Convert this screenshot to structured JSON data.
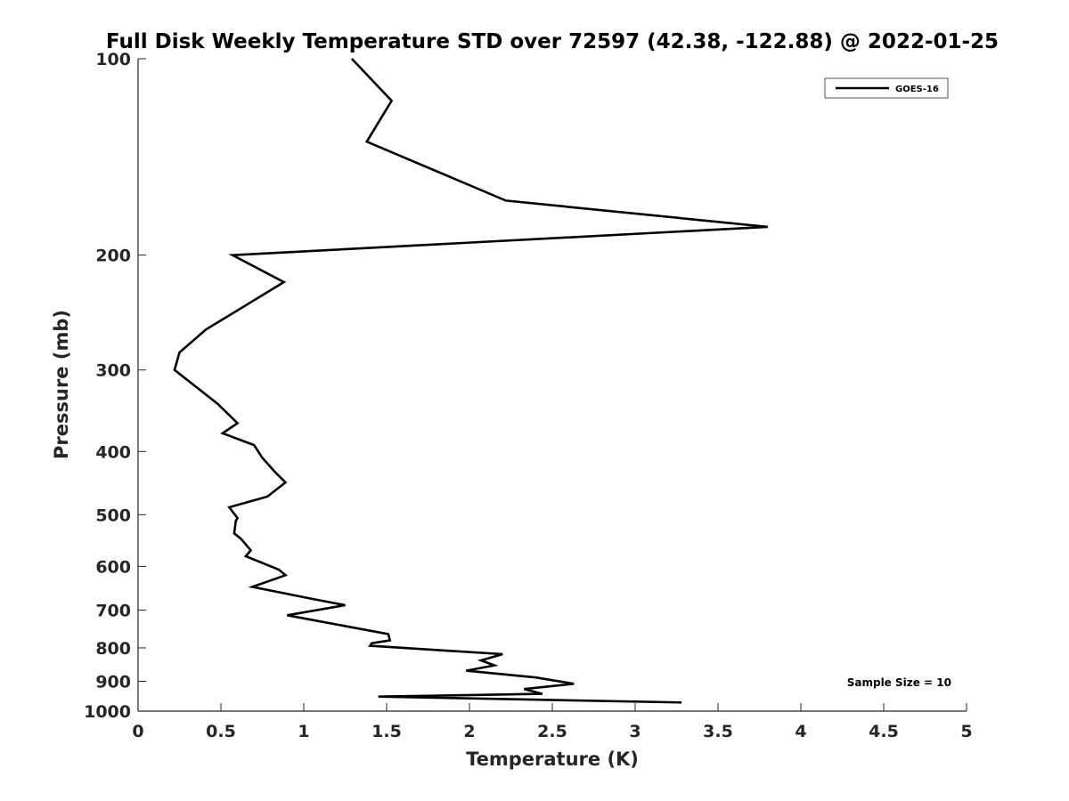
{
  "chart_data": {
    "type": "line",
    "title": "Full Disk Weekly Temperature STD over 72597 (42.38, -122.88) @ 2022-01-25",
    "xlabel": "Temperature (K)",
    "ylabel": "Pressure (mb)",
    "xlim": [
      0,
      5
    ],
    "ylim": [
      100,
      1000
    ],
    "y_scale": "log",
    "y_reversed": true,
    "x_ticks": [
      "0",
      "0.5",
      "1",
      "1.5",
      "2",
      "2.5",
      "3",
      "3.5",
      "4",
      "4.5",
      "5"
    ],
    "y_ticks": [
      "100",
      "200",
      "300",
      "400",
      "500",
      "600",
      "700",
      "800",
      "900",
      "1000"
    ],
    "grid": false,
    "legend_position": "top-right",
    "annotation": "Sample Size = 10",
    "line_color": "#000000",
    "series": [
      {
        "name": "GOES-16",
        "x": [
          1.29,
          1.53,
          1.38,
          2.22,
          3.8,
          0.57,
          0.88,
          0.41,
          0.25,
          0.22,
          0.48,
          0.6,
          0.51,
          0.7,
          0.75,
          0.83,
          0.89,
          0.78,
          0.55,
          0.6,
          0.59,
          0.58,
          0.62,
          0.66,
          0.68,
          0.65,
          0.85,
          0.89,
          0.69,
          1.04,
          1.25,
          0.9,
          1.51,
          1.52,
          1.41,
          1.4,
          2.2,
          2.07,
          2.15,
          1.98,
          2.4,
          2.63,
          2.33,
          2.44,
          1.45,
          3.28
        ],
        "y": [
          100,
          116,
          134,
          165,
          181,
          200,
          220,
          260,
          282,
          300,
          338,
          362,
          375,
          391,
          409,
          431,
          446,
          469,
          487,
          506,
          511,
          534,
          544,
          559,
          567,
          579,
          607,
          619,
          645,
          672,
          688,
          713,
          762,
          779,
          787,
          794,
          818,
          836,
          851,
          867,
          888,
          908,
          925,
          941,
          950,
          970
        ]
      }
    ]
  }
}
